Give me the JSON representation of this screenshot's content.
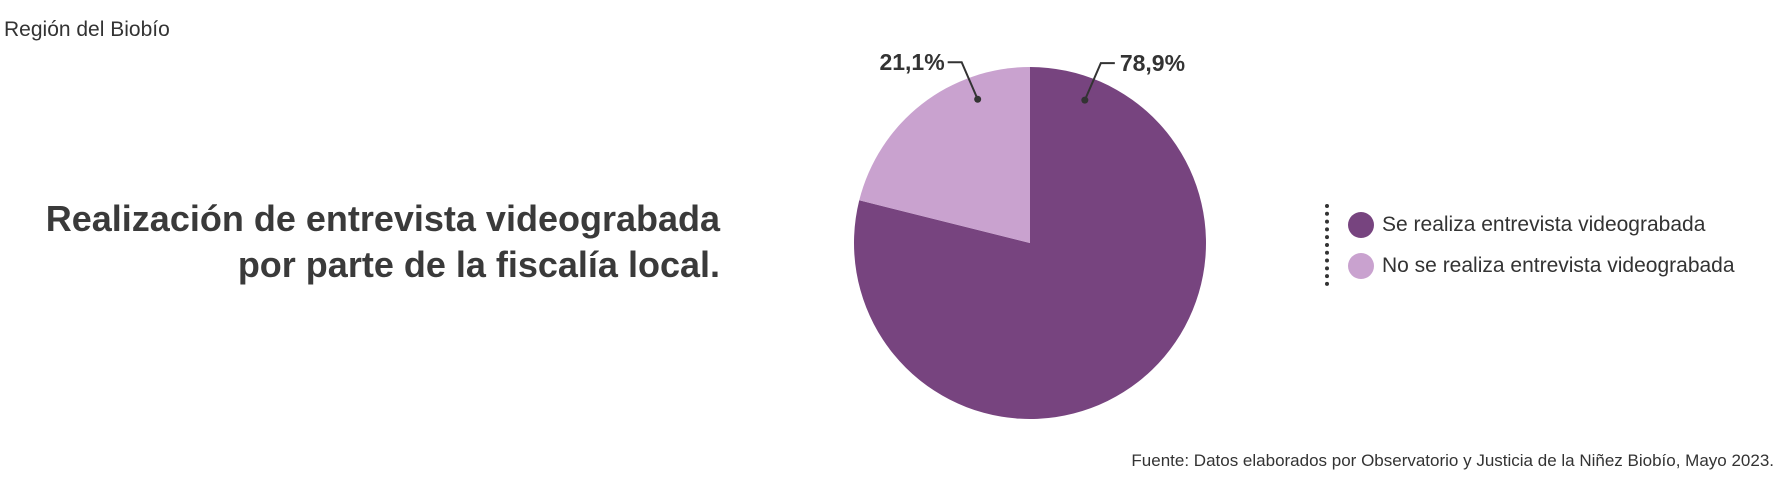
{
  "region_label": "Región del Biobío",
  "chart_data": {
    "type": "pie",
    "title_lines": [
      "Realización de entrevista videograbada",
      "por parte de la fiscalía local."
    ],
    "slices": [
      {
        "name": "Se realiza entrevista videograbada",
        "value": 78.9,
        "label": "78,9%",
        "color": "#77447f"
      },
      {
        "name": "No se realiza entrevista videograbada",
        "value": 21.1,
        "label": "21,1%",
        "color": "#c9a2cf"
      }
    ],
    "legend_position": "right"
  },
  "source": "Fuente: Datos elaborados por Observatorio y Justicia de la Niñez Biobío, Mayo 2023."
}
